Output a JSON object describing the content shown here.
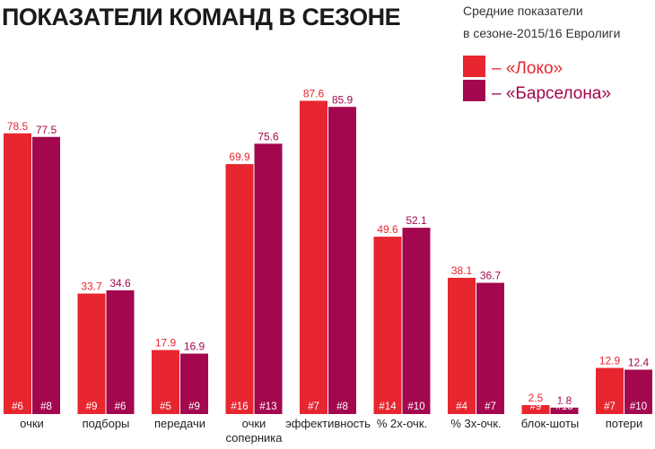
{
  "chart_data": {
    "type": "bar",
    "title": "ПОКАЗАТЕЛИ КОМАНД В СЕЗОНЕ",
    "subtitle": [
      "Средние показатели",
      "в сезоне-2015/16 Евролиги"
    ],
    "legend_position": "top-right",
    "categories": [
      [
        "очки"
      ],
      [
        "подборы"
      ],
      [
        "передачи"
      ],
      [
        "очки",
        "соперника"
      ],
      [
        "эффективность"
      ],
      [
        "% 2х-очк."
      ],
      [
        "% 3х-очк."
      ],
      [
        "блок-шоты"
      ],
      [
        "потери"
      ]
    ],
    "series": [
      {
        "name": "– «Локо»",
        "color": "#e8262f",
        "values": [
          78.5,
          33.7,
          17.9,
          69.9,
          87.6,
          49.6,
          38.1,
          2.5,
          12.9
        ],
        "labels": [
          "78.5",
          "33.7",
          "17.9",
          "69.9",
          "87.6",
          "49.6",
          "38.1",
          "2.5",
          "12.9"
        ],
        "ranks": [
          "#6",
          "#9",
          "#5",
          "#16",
          "#7",
          "#14",
          "#4",
          "#9",
          "#7"
        ]
      },
      {
        "name": "– «Барселона»",
        "color": "#a3074d",
        "values": [
          77.5,
          34.6,
          16.9,
          75.6,
          85.9,
          52.1,
          36.7,
          1.8,
          12.4
        ],
        "labels": [
          "77.5",
          "34.6",
          "16.9",
          "75.6",
          "85.9",
          "52.1",
          "36.7",
          "1.8",
          "12.4"
        ],
        "ranks": [
          "#8",
          "#6",
          "#9",
          "#13",
          "#8",
          "#10",
          "#7",
          "#13",
          "#10"
        ]
      }
    ]
  }
}
